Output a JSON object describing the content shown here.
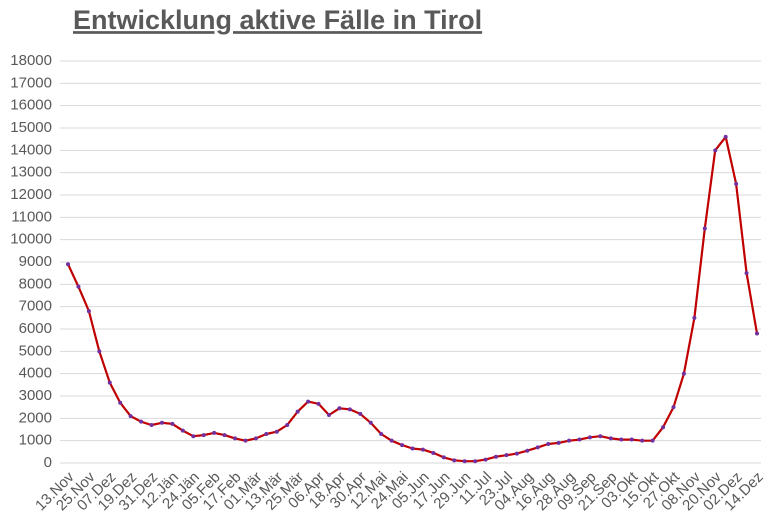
{
  "chart_data": {
    "type": "line",
    "title": "Entwicklung aktive Fälle in Tirol",
    "categories": [
      "13.Nov",
      null,
      "25.Nov",
      null,
      "07.Dez",
      null,
      "19.Dez",
      null,
      "31.Dez",
      null,
      "12.Jän",
      null,
      "24.Jän",
      null,
      "05.Feb",
      null,
      "17.Feb",
      null,
      "01.Mär",
      null,
      "13.Mär",
      null,
      "25.Mär",
      null,
      "06.Apr",
      null,
      "18.Apr",
      null,
      "30.Apr",
      null,
      "12.Mai",
      null,
      "24.Mai",
      null,
      "05.Jun",
      null,
      "17.Jun",
      null,
      "29.Jun",
      null,
      "11.Jul",
      null,
      "23.Jul",
      null,
      "04.Aug",
      null,
      "16.Aug",
      null,
      "28.Aug",
      null,
      "09.Sep",
      null,
      "21.Sep",
      null,
      "03.Okt",
      null,
      "15.Okt",
      null,
      "27.Okt",
      null,
      "08.Nov",
      null,
      "20.Nov",
      null,
      "02.Dez",
      null,
      "14.Dez"
    ],
    "values": [
      8900,
      7900,
      6800,
      5000,
      3600,
      2700,
      2100,
      1850,
      1700,
      1800,
      1750,
      1450,
      1200,
      1250,
      1350,
      1250,
      1100,
      1000,
      1100,
      1300,
      1400,
      1700,
      2300,
      2750,
      2650,
      2150,
      2450,
      2400,
      2200,
      1800,
      1300,
      1000,
      800,
      650,
      600,
      450,
      250,
      120,
      80,
      80,
      150,
      280,
      350,
      420,
      550,
      700,
      850,
      900,
      1000,
      1050,
      1150,
      1200,
      1100,
      1050,
      1050,
      1000,
      1000,
      1600,
      2500,
      4000,
      6500,
      10500,
      14000,
      14600,
      12500,
      8500,
      5800
    ],
    "color": "#c00000",
    "marker_color": "#7030a0",
    "ylim": [
      0,
      18000
    ],
    "yticks": [
      0,
      1000,
      2000,
      3000,
      4000,
      5000,
      6000,
      7000,
      8000,
      9000,
      10000,
      11000,
      12000,
      13000,
      14000,
      15000,
      16000,
      17000,
      18000
    ],
    "grid": true
  }
}
